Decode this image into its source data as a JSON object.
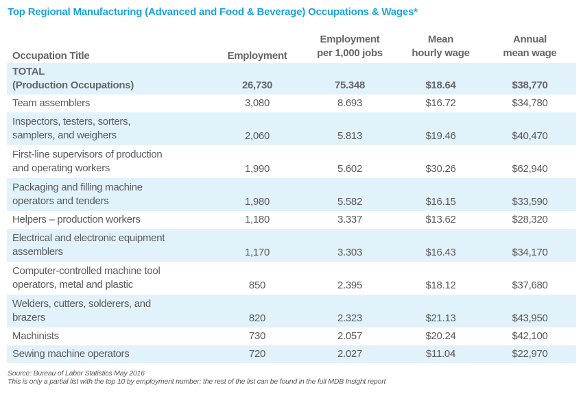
{
  "title": "Top Regional Manufacturing (Advanced and Food & Beverage) Occupations & Wages*",
  "headers": {
    "occupation": "Occupation Title",
    "employment": "Employment",
    "per_1000_line1": "Employment",
    "per_1000_line2": "per 1,000 jobs",
    "hourly_line1": "Mean",
    "hourly_line2": "hourly wage",
    "annual_line1": "Annual",
    "annual_line2": "mean wage"
  },
  "total": {
    "line1": "TOTAL",
    "line2": "(Production Occupations)",
    "employment": "26,730",
    "per_1000": "75.348",
    "hourly": "$18.64",
    "annual": "$38,770"
  },
  "rows": [
    {
      "line1": "Team assemblers",
      "line2": "",
      "employment": "3,080",
      "per_1000": "8.693",
      "hourly": "$16.72",
      "annual": "$34,780"
    },
    {
      "line1": "Inspectors, testers, sorters,",
      "line2": "samplers, and weighers",
      "employment": "2,060",
      "per_1000": "5.813",
      "hourly": "$19.46",
      "annual": "$40,470"
    },
    {
      "line1": "First-line supervisors of production",
      "line2": "and operating workers",
      "employment": "1,990",
      "per_1000": "5.602",
      "hourly": "$30.26",
      "annual": "$62,940"
    },
    {
      "line1": "Packaging and filling machine",
      "line2": "operators and tenders",
      "employment": "1,980",
      "per_1000": "5.582",
      "hourly": "$16.15",
      "annual": "$33,590"
    },
    {
      "line1": "Helpers – production workers",
      "line2": "",
      "employment": "1,180",
      "per_1000": "3.337",
      "hourly": "$13.62",
      "annual": "$28,320"
    },
    {
      "line1": "Electrical and electronic equipment",
      "line2": "assemblers",
      "employment": "1,170",
      "per_1000": "3.303",
      "hourly": "$16.43",
      "annual": "$34,170"
    },
    {
      "line1": "Computer-controlled machine tool",
      "line2": "operators, metal and plastic",
      "employment": "850",
      "per_1000": "2.395",
      "hourly": "$18.12",
      "annual": "$37,680"
    },
    {
      "line1": "Welders, cutters, solderers, and",
      "line2": "brazers",
      "employment": "820",
      "per_1000": "2.323",
      "hourly": "$21.13",
      "annual": "$43,950"
    },
    {
      "line1": "Machinists",
      "line2": "",
      "employment": "730",
      "per_1000": "2.057",
      "hourly": "$20.24",
      "annual": "$42,100"
    },
    {
      "line1": "Sewing machine operators",
      "line2": "",
      "employment": "720",
      "per_1000": "2.027",
      "hourly": "$11.04",
      "annual": "$22,970"
    }
  ],
  "footer": {
    "source": "Source: Bureau of Labor Statistics May 2016",
    "note": "This is only a partial list with the top 10 by employment number; the rest of the list can be found in the full MDB Insight report"
  },
  "colors": {
    "title": "#1ba3dc",
    "row_shade": "#e1f2fb",
    "text": "#5a5a5a"
  }
}
